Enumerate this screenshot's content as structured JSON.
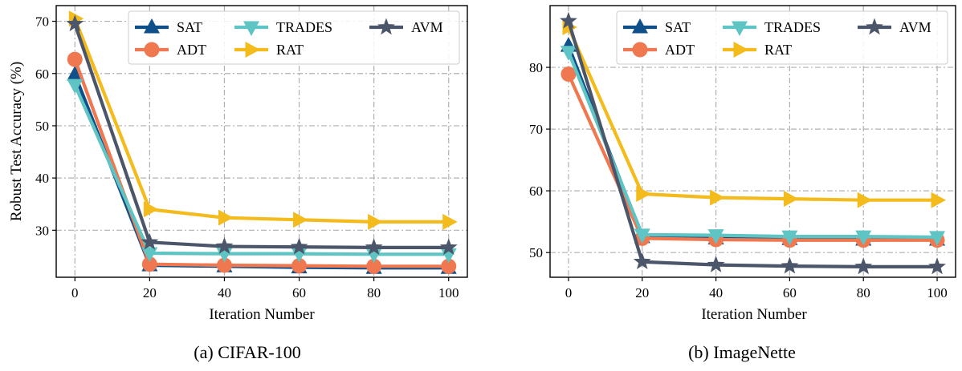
{
  "figure": {
    "panels": [
      {
        "caption": "(a) CIFAR-100",
        "xlabel": "Iteration Number",
        "ylabel": "Robust Test Accuracy (%)"
      },
      {
        "caption": "(b) ImageNette",
        "xlabel": "Iteration Number",
        "ylabel": ""
      }
    ]
  },
  "colors": {
    "SAT": "#0f4f8a",
    "ADT": "#f07850",
    "TRADES": "#5ec4c4",
    "RAT": "#f4bb1c",
    "AVM": "#4c566a",
    "grid": "#b0b0b0"
  },
  "chart_data": [
    {
      "type": "line",
      "title": "",
      "caption": "(a) CIFAR-100",
      "xlabel": "Iteration Number",
      "ylabel": "Robust Test Accuracy (%)",
      "x": [
        0,
        20,
        40,
        60,
        80,
        100
      ],
      "xticks": [
        "0",
        "20",
        "40",
        "60",
        "80",
        "100"
      ],
      "yticks": [
        30,
        40,
        50,
        60,
        70
      ],
      "xlim": [
        -5,
        105
      ],
      "ylim": [
        21,
        73
      ],
      "grid": true,
      "legend": "top-right, 3 columns",
      "series": [
        {
          "name": "SAT",
          "marker": "triangle-up",
          "values": [
            59.8,
            23.3,
            23.1,
            22.9,
            22.8,
            22.8
          ]
        },
        {
          "name": "ADT",
          "marker": "circle",
          "values": [
            62.7,
            23.5,
            23.3,
            23.2,
            23.1,
            23.1
          ]
        },
        {
          "name": "TRADES",
          "marker": "triangle-down",
          "values": [
            57.8,
            25.6,
            25.5,
            25.5,
            25.4,
            25.4
          ]
        },
        {
          "name": "RAT",
          "marker": "triangle-right",
          "values": [
            70.5,
            34.0,
            32.4,
            32.0,
            31.6,
            31.6
          ]
        },
        {
          "name": "AVM",
          "marker": "star",
          "values": [
            69.5,
            27.7,
            26.9,
            26.8,
            26.7,
            26.7
          ]
        }
      ]
    },
    {
      "type": "line",
      "title": "",
      "caption": "(b) ImageNette",
      "xlabel": "Iteration Number",
      "ylabel": "",
      "x": [
        0,
        20,
        40,
        60,
        80,
        100
      ],
      "xticks": [
        "0",
        "20",
        "40",
        "60",
        "80",
        "100"
      ],
      "yticks": [
        50,
        60,
        70,
        80
      ],
      "xlim": [
        -5,
        105
      ],
      "ylim": [
        46,
        90
      ],
      "grid": true,
      "legend": "top-right, 3 columns",
      "series": [
        {
          "name": "SAT",
          "marker": "triangle-up",
          "values": [
            83.5,
            52.5,
            52.3,
            52.2,
            52.1,
            52.1
          ]
        },
        {
          "name": "ADT",
          "marker": "circle",
          "values": [
            78.9,
            52.3,
            52.1,
            52.0,
            52.0,
            52.0
          ]
        },
        {
          "name": "TRADES",
          "marker": "triangle-down",
          "values": [
            82.5,
            52.9,
            52.8,
            52.6,
            52.6,
            52.5
          ]
        },
        {
          "name": "RAT",
          "marker": "triangle-right",
          "values": [
            86.5,
            59.5,
            58.9,
            58.7,
            58.5,
            58.5
          ]
        },
        {
          "name": "AVM",
          "marker": "star",
          "values": [
            87.5,
            48.5,
            48.0,
            47.8,
            47.7,
            47.7
          ]
        }
      ]
    }
  ]
}
